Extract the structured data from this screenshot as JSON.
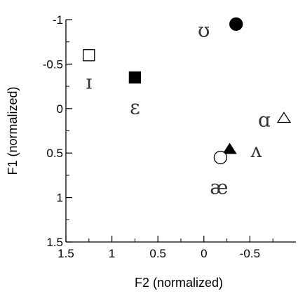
{
  "chart_data": {
    "type": "scatter",
    "title": "",
    "xlabel": "F2 (normalized)",
    "ylabel": "F1 (normalized)",
    "x_reversed": true,
    "y_reversed": true,
    "xlim": [
      1.5,
      -1
    ],
    "ylim": [
      -1,
      1.5
    ],
    "x_ticks": [
      1.5,
      1,
      0.5,
      0,
      -0.5
    ],
    "x_tick_labels": [
      "1.5",
      "1",
      "0.5",
      "0",
      "-0.5"
    ],
    "y_ticks": [
      -1,
      -0.5,
      0,
      0.5,
      1,
      1.5
    ],
    "y_tick_labels": [
      "-1",
      "-0.5",
      "0",
      "0.5",
      "1",
      "1.5"
    ],
    "grid": false,
    "points": [
      {
        "label": "ʊ",
        "x": -0.35,
        "y": -0.95,
        "marker": "circle",
        "filled": true,
        "color": "#000000"
      },
      {
        "label": "ɪ",
        "x": 1.25,
        "y": -0.6,
        "marker": "square",
        "filled": false,
        "color": "#000000"
      },
      {
        "label": "ɛ",
        "x": 0.75,
        "y": -0.35,
        "marker": "square",
        "filled": true,
        "color": "#000000"
      },
      {
        "label": "ɑ",
        "x": -0.87,
        "y": 0.1,
        "marker": "triangle",
        "filled": false,
        "color": "#000000"
      },
      {
        "label": "ʌ",
        "x": -0.28,
        "y": 0.45,
        "marker": "triangle",
        "filled": true,
        "color": "#000000"
      },
      {
        "label": "æ",
        "x": -0.18,
        "y": 0.55,
        "marker": "circle",
        "filled": false,
        "color": "#000000"
      }
    ]
  }
}
